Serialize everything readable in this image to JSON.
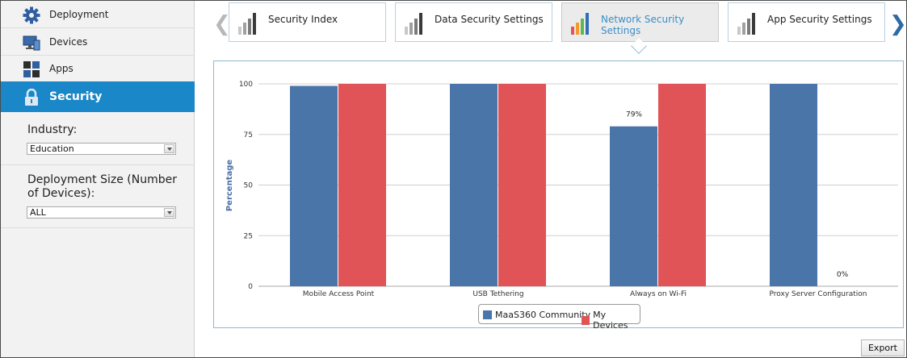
{
  "sidebar": {
    "items": [
      {
        "label": "Deployment",
        "icon": "gear-icon"
      },
      {
        "label": "Devices",
        "icon": "monitor-icon"
      },
      {
        "label": "Apps",
        "icon": "apps-grid-icon"
      },
      {
        "label": "Security",
        "icon": "lock-icon",
        "active": true
      }
    ],
    "industry": {
      "label": "Industry:",
      "value": "Education"
    },
    "deployment_size": {
      "label_line1": "Deployment Size (Number",
      "label_line2": "of Devices):",
      "value": "ALL"
    }
  },
  "tabs": [
    {
      "label": "Security Index",
      "active": false
    },
    {
      "label": "Data Security Settings",
      "active": false
    },
    {
      "label": "Network Security Settings",
      "active": true
    },
    {
      "label": "App Security Settings",
      "active": false
    }
  ],
  "nav": {
    "prev_icon": "chevron-left-icon",
    "next_icon": "chevron-right-icon"
  },
  "colors": {
    "accent": "#1a87c8",
    "series_community": "#4a75a8",
    "series_devices": "#e05356",
    "active_tab_text": "#3a8fc7"
  },
  "chart_data": {
    "type": "bar",
    "title": "",
    "xlabel": "",
    "ylabel": "Percentage",
    "ylim": [
      0,
      100
    ],
    "yticks": [
      0,
      25,
      50,
      75,
      100
    ],
    "categories": [
      "Mobile Access Point",
      "USB Tethering",
      "Always on Wi-Fi",
      "Proxy Server Configuration"
    ],
    "series": [
      {
        "name": "MaaS360 Community",
        "color": "#4a75a8",
        "values": [
          99,
          100,
          79,
          100
        ]
      },
      {
        "name": "My Devices",
        "color": "#e05356",
        "values": [
          100,
          100,
          100,
          0
        ]
      }
    ],
    "data_labels": [
      {
        "series": 0,
        "index": 2,
        "text": "79%"
      },
      {
        "series": 1,
        "index": 3,
        "text": "0%"
      }
    ],
    "grid": true,
    "legend": "bottom"
  },
  "export_label": "Export"
}
